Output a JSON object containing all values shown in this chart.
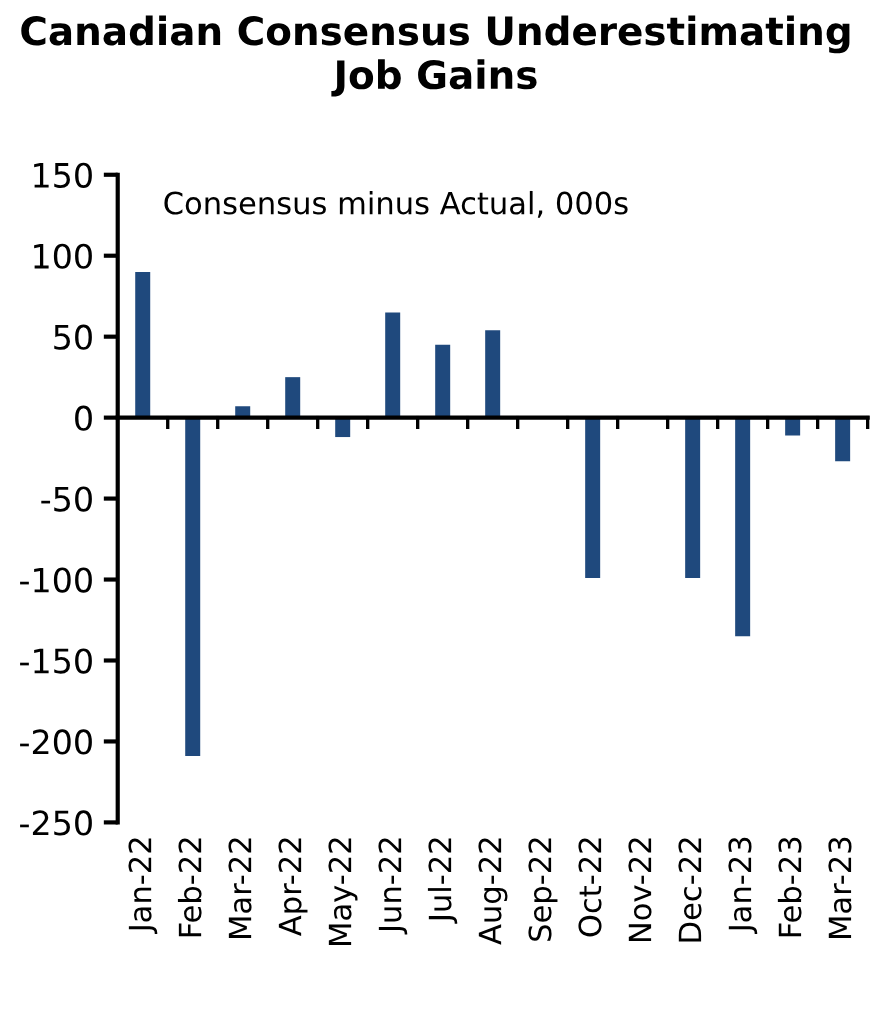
{
  "chart_data": {
    "type": "bar",
    "title": "Canadian Consensus Underestimating\nJob Gains",
    "annotations": [
      "Consensus minus Actual, 000s"
    ],
    "categories": [
      "Jan-22",
      "Feb-22",
      "Mar-22",
      "Apr-22",
      "May-22",
      "Jun-22",
      "Jul-22",
      "Aug-22",
      "Sep-22",
      "Oct-22",
      "Nov-22",
      "Dec-22",
      "Jan-23",
      "Feb-23",
      "Mar-23"
    ],
    "values": [
      90,
      -209,
      7,
      25,
      -12,
      65,
      45,
      54,
      null,
      -99,
      0,
      -99,
      -135,
      -11,
      -27
    ],
    "color": "#1f497d",
    "ylim": [
      -250,
      150
    ],
    "yticks": [
      -250,
      -200,
      -150,
      -100,
      -50,
      0,
      50,
      100,
      150
    ],
    "legend": false
  }
}
